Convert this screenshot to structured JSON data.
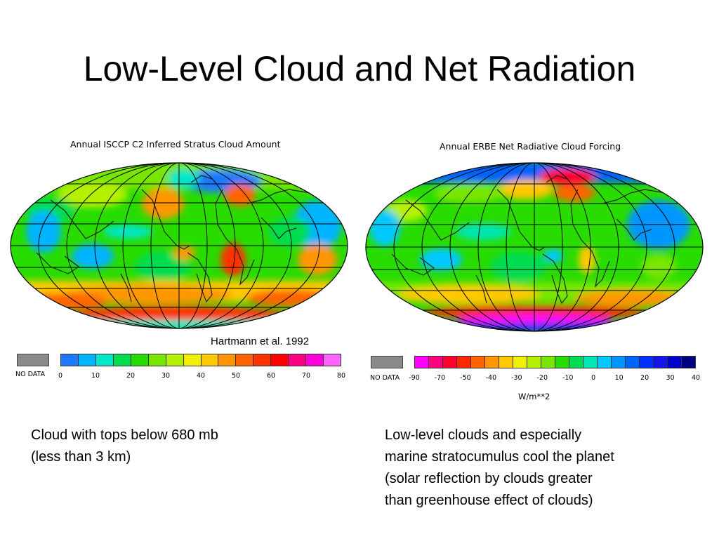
{
  "slide": {
    "title": "Low-Level Cloud and Net Radiation",
    "credit": "Hartmann et al. 1992"
  },
  "left_panel": {
    "map_title": "Annual ISCCP C2 Inferred Stratus Cloud Amount",
    "nodata_label": "NO DATA",
    "colors": [
      "#1e78ff",
      "#00b4ff",
      "#00e6c8",
      "#00dc50",
      "#28dc00",
      "#78e600",
      "#b4f000",
      "#f0f000",
      "#ffc800",
      "#ff9600",
      "#ff6400",
      "#ff3200",
      "#ff0000",
      "#ff0080",
      "#ff00dc",
      "#ff64ff"
    ],
    "ticks": [
      "0",
      "10",
      "20",
      "30",
      "40",
      "50",
      "60",
      "70",
      "80"
    ],
    "caption": [
      "Cloud with tops below 680 mb",
      "(less than 3 km)"
    ]
  },
  "right_panel": {
    "map_title": "Annual ERBE Net Radiative Cloud Forcing",
    "nodata_label": "NO DATA",
    "colors": [
      "#ff00ff",
      "#ff0080",
      "#ff0030",
      "#ff2800",
      "#ff6400",
      "#ff9600",
      "#ffc800",
      "#f0f000",
      "#b4f000",
      "#78e600",
      "#28dc00",
      "#00dc50",
      "#00e6b4",
      "#00c8ff",
      "#0096ff",
      "#0064ff",
      "#0032ff",
      "#1414e6",
      "#0000c8",
      "#000080"
    ],
    "ticks": [
      "-90",
      "-70",
      "-50",
      "-40",
      "-30",
      "-20",
      "-10",
      "0",
      "10",
      "20",
      "30",
      "40"
    ],
    "units": "W/m**2",
    "caption": [
      "Low-level clouds and especially",
      "marine stratocumulus cool the planet",
      "(solar reflection by clouds greater",
      "than greenhouse effect of clouds)"
    ]
  }
}
